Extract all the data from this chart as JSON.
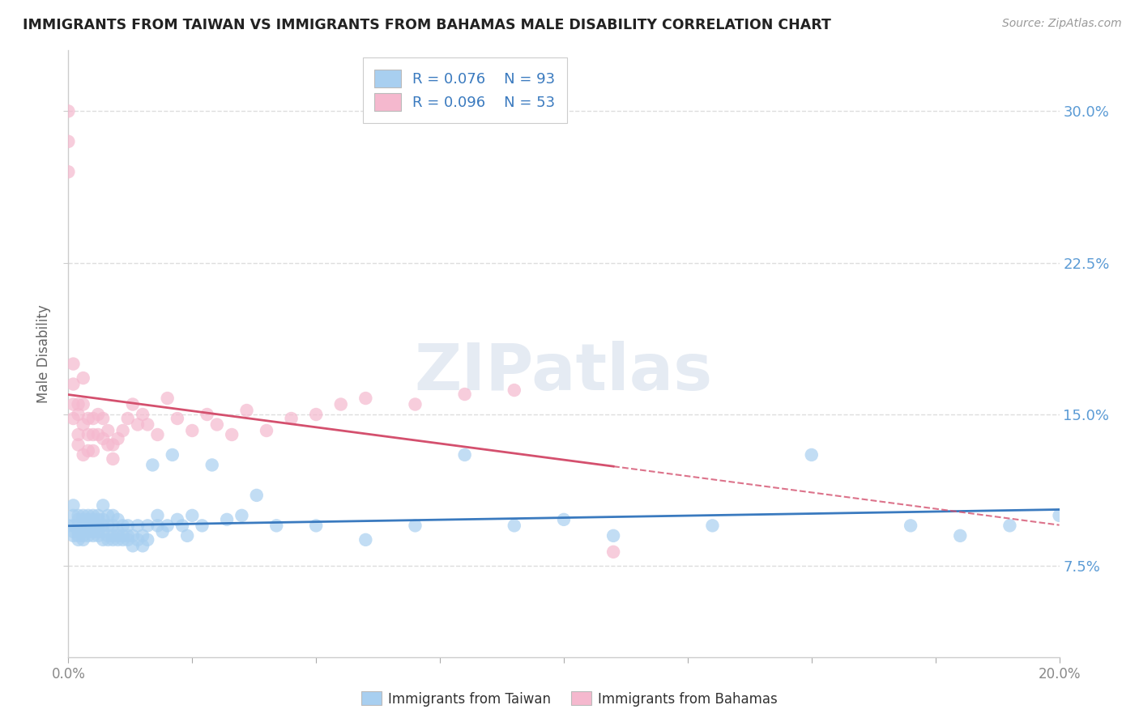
{
  "title": "IMMIGRANTS FROM TAIWAN VS IMMIGRANTS FROM BAHAMAS MALE DISABILITY CORRELATION CHART",
  "source": "Source: ZipAtlas.com",
  "ylabel": "Male Disability",
  "xlabel_taiwan": "Immigrants from Taiwan",
  "xlabel_bahamas": "Immigrants from Bahamas",
  "watermark": "ZIPatlas",
  "taiwan": {
    "R": 0.076,
    "N": 93,
    "color": "#a8cff0",
    "line_color": "#3a7abf",
    "x": [
      0.0,
      0.001,
      0.001,
      0.001,
      0.001,
      0.001,
      0.002,
      0.002,
      0.002,
      0.002,
      0.002,
      0.002,
      0.003,
      0.003,
      0.003,
      0.003,
      0.003,
      0.003,
      0.004,
      0.004,
      0.004,
      0.004,
      0.004,
      0.005,
      0.005,
      0.005,
      0.005,
      0.005,
      0.006,
      0.006,
      0.006,
      0.006,
      0.006,
      0.007,
      0.007,
      0.007,
      0.007,
      0.007,
      0.008,
      0.008,
      0.008,
      0.008,
      0.009,
      0.009,
      0.009,
      0.009,
      0.01,
      0.01,
      0.01,
      0.01,
      0.011,
      0.011,
      0.011,
      0.012,
      0.012,
      0.012,
      0.013,
      0.013,
      0.014,
      0.014,
      0.015,
      0.015,
      0.016,
      0.016,
      0.017,
      0.018,
      0.018,
      0.019,
      0.02,
      0.021,
      0.022,
      0.023,
      0.024,
      0.025,
      0.027,
      0.029,
      0.032,
      0.035,
      0.038,
      0.042,
      0.05,
      0.06,
      0.07,
      0.08,
      0.09,
      0.1,
      0.11,
      0.13,
      0.15,
      0.17,
      0.18,
      0.19,
      0.2
    ],
    "y": [
      0.095,
      0.095,
      0.09,
      0.1,
      0.092,
      0.105,
      0.09,
      0.092,
      0.095,
      0.088,
      0.1,
      0.098,
      0.09,
      0.092,
      0.095,
      0.088,
      0.098,
      0.1,
      0.09,
      0.095,
      0.092,
      0.098,
      0.1,
      0.09,
      0.092,
      0.095,
      0.098,
      0.1,
      0.09,
      0.092,
      0.095,
      0.098,
      0.1,
      0.088,
      0.092,
      0.095,
      0.098,
      0.105,
      0.088,
      0.09,
      0.095,
      0.1,
      0.088,
      0.09,
      0.095,
      0.1,
      0.088,
      0.09,
      0.092,
      0.098,
      0.088,
      0.09,
      0.095,
      0.088,
      0.09,
      0.095,
      0.085,
      0.09,
      0.088,
      0.095,
      0.085,
      0.09,
      0.088,
      0.095,
      0.125,
      0.095,
      0.1,
      0.092,
      0.095,
      0.13,
      0.098,
      0.095,
      0.09,
      0.1,
      0.095,
      0.125,
      0.098,
      0.1,
      0.11,
      0.095,
      0.095,
      0.088,
      0.095,
      0.13,
      0.095,
      0.098,
      0.09,
      0.095,
      0.13,
      0.095,
      0.09,
      0.095,
      0.1
    ]
  },
  "bahamas": {
    "R": 0.096,
    "N": 53,
    "color": "#f5b8ce",
    "line_color": "#d4506e",
    "x": [
      0.0,
      0.0,
      0.0,
      0.001,
      0.001,
      0.001,
      0.001,
      0.002,
      0.002,
      0.002,
      0.002,
      0.003,
      0.003,
      0.003,
      0.003,
      0.004,
      0.004,
      0.004,
      0.005,
      0.005,
      0.005,
      0.006,
      0.006,
      0.007,
      0.007,
      0.008,
      0.008,
      0.009,
      0.009,
      0.01,
      0.011,
      0.012,
      0.013,
      0.014,
      0.015,
      0.016,
      0.018,
      0.02,
      0.022,
      0.025,
      0.028,
      0.03,
      0.033,
      0.036,
      0.04,
      0.045,
      0.05,
      0.055,
      0.06,
      0.07,
      0.08,
      0.09,
      0.11
    ],
    "y": [
      0.3,
      0.285,
      0.27,
      0.175,
      0.165,
      0.155,
      0.148,
      0.155,
      0.15,
      0.14,
      0.135,
      0.168,
      0.155,
      0.145,
      0.13,
      0.148,
      0.14,
      0.132,
      0.148,
      0.14,
      0.132,
      0.15,
      0.14,
      0.148,
      0.138,
      0.142,
      0.135,
      0.135,
      0.128,
      0.138,
      0.142,
      0.148,
      0.155,
      0.145,
      0.15,
      0.145,
      0.14,
      0.158,
      0.148,
      0.142,
      0.15,
      0.145,
      0.14,
      0.152,
      0.142,
      0.148,
      0.15,
      0.155,
      0.158,
      0.155,
      0.16,
      0.162,
      0.082
    ]
  },
  "xlim": [
    0.0,
    0.2
  ],
  "ylim": [
    0.03,
    0.33
  ],
  "yticks": [
    0.075,
    0.15,
    0.225,
    0.3
  ],
  "ytick_labels": [
    "7.5%",
    "15.0%",
    "22.5%",
    "30.0%"
  ],
  "xticks": [
    0.0,
    0.025,
    0.05,
    0.075,
    0.1,
    0.125,
    0.15,
    0.175,
    0.2
  ],
  "xtick_labels_show": [
    "0.0%",
    "",
    "",
    "",
    "",
    "",
    "",
    "",
    "20.0%"
  ],
  "background_color": "#ffffff",
  "grid_color": "#dddddd"
}
